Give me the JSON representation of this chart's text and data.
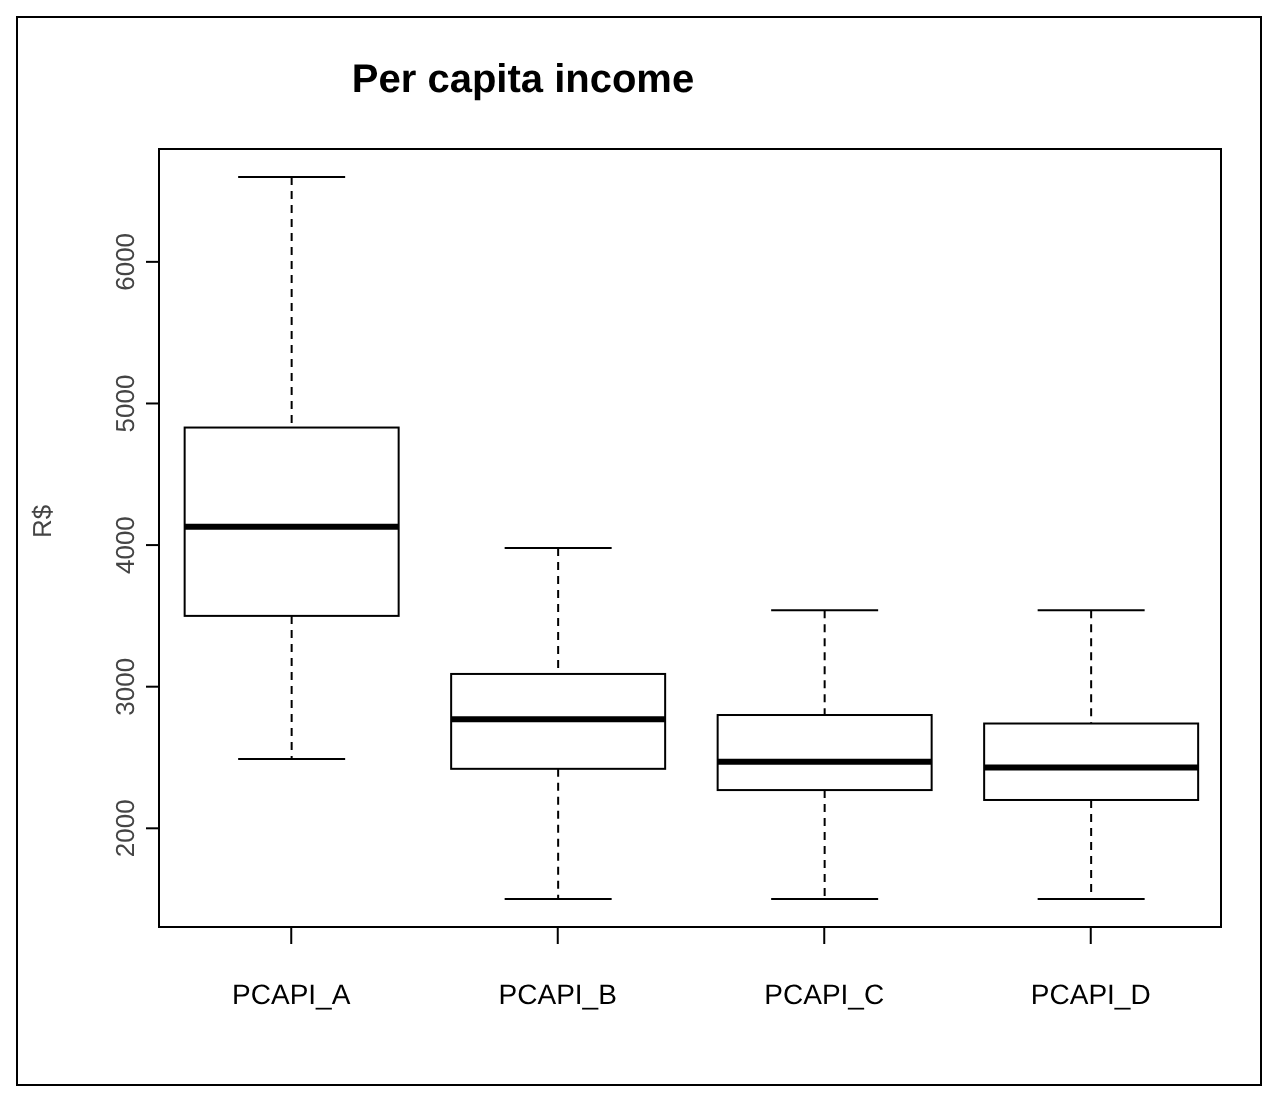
{
  "chart_data": {
    "type": "box",
    "title": "Per capita income",
    "ylabel": "R$",
    "categories": [
      "PCAPI_A",
      "PCAPI_B",
      "PCAPI_C",
      "PCAPI_D"
    ],
    "boxes": [
      {
        "low": 2490,
        "q1": 3500,
        "median": 4130,
        "q3": 4830,
        "high": 6600
      },
      {
        "low": 1500,
        "q1": 2420,
        "median": 2770,
        "q3": 3090,
        "high": 3980
      },
      {
        "low": 1500,
        "q1": 2270,
        "median": 2470,
        "q3": 2800,
        "high": 3540
      },
      {
        "low": 1500,
        "q1": 2200,
        "median": 2430,
        "q3": 2740,
        "high": 3540
      }
    ],
    "ylim": [
      1296,
      6804
    ],
    "yticks": [
      2000,
      3000,
      4000,
      5000,
      6000
    ]
  }
}
